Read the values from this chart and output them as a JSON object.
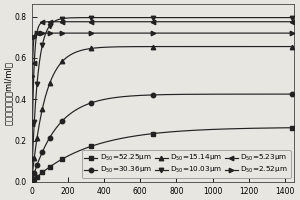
{
  "title": "",
  "ylabel": "填充孔隙能力（ml/ml）",
  "xlabel": "",
  "xlim": [
    0,
    1450
  ],
  "ylim": [
    0.0,
    0.86
  ],
  "yticks": [
    0.0,
    0.2,
    0.4,
    0.6,
    0.8
  ],
  "xticks": [
    0,
    200,
    400,
    600,
    800,
    1000,
    1200,
    1400
  ],
  "series": [
    {
      "label": "D$_{50}$=52.25μm",
      "marker": "s",
      "color": "#222222",
      "Vmax": 0.265,
      "k": 0.0032
    },
    {
      "label": "D$_{50}$=30.36μm",
      "marker": "o",
      "color": "#222222",
      "Vmax": 0.425,
      "k": 0.007
    },
    {
      "label": "D$_{50}$=15.14μm",
      "marker": "^",
      "color": "#222222",
      "Vmax": 0.655,
      "k": 0.013
    },
    {
      "label": "D$_{50}$=10.03μm",
      "marker": "v",
      "color": "#222222",
      "Vmax": 0.795,
      "k": 0.03
    },
    {
      "label": "D$_{50}$=5.23μm",
      "marker": "<",
      "color": "#222222",
      "Vmax": 0.775,
      "k": 0.09
    },
    {
      "label": "D$_{50}$=2.52μm",
      "marker": ">",
      "color": "#222222",
      "Vmax": 0.72,
      "k": 0.25
    }
  ],
  "sample_x": [
    5,
    15,
    30,
    60,
    100,
    170,
    330,
    670,
    1440
  ],
  "background_color": "#e8e6e0",
  "legend_fontsize": 5.2,
  "axis_fontsize": 6.0,
  "tick_fontsize": 5.5
}
